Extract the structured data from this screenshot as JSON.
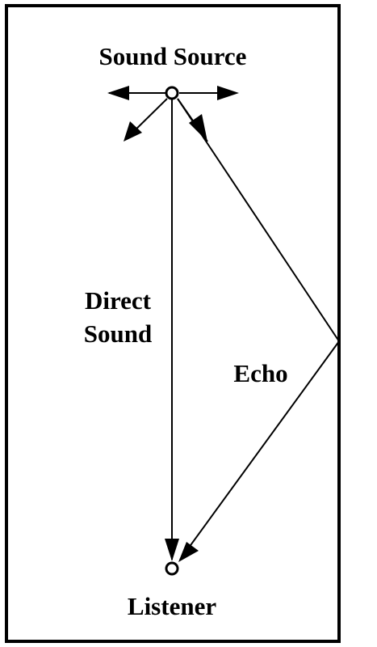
{
  "labels": {
    "source": "Sound Source",
    "direct_line1": "Direct",
    "direct_line2": "Sound",
    "echo": "Echo",
    "listener": "Listener"
  },
  "colors": {
    "ink": "#000000",
    "background": "#ffffff"
  }
}
